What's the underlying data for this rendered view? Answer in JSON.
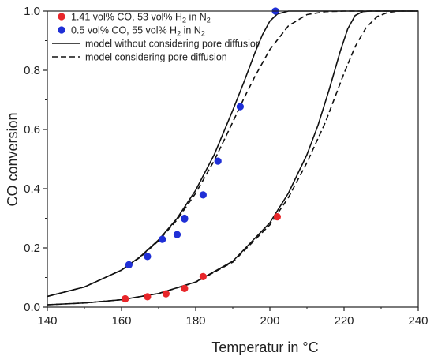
{
  "chart_data": {
    "type": "scatter",
    "xlabel": "Temperatur in °C",
    "ylabel": "CO conversion",
    "xlim": [
      140,
      240
    ],
    "ylim": [
      0.0,
      1.0
    ],
    "x_ticks": [
      "140",
      "160",
      "180",
      "200",
      "220",
      "240"
    ],
    "y_ticks": [
      "0.0",
      "0.2",
      "0.4",
      "0.6",
      "0.8",
      "1.0"
    ],
    "grid": false,
    "legend_position": "top-left",
    "legend": [
      {
        "marker": "dot",
        "color": "#e8262a",
        "parts": [
          "1.41 vol% CO, 53 vol% H",
          "2",
          " in N",
          "2"
        ]
      },
      {
        "marker": "dot",
        "color": "#1f2fd6",
        "parts": [
          "0.5 vol% CO, 55 vol% H",
          "2",
          " in N",
          "2"
        ]
      },
      {
        "marker": "solid-line",
        "color": "#111111",
        "parts": [
          "model without considering pore diffusion"
        ]
      },
      {
        "marker": "dashed-line",
        "color": "#111111",
        "parts": [
          "model considering pore diffusion"
        ]
      }
    ],
    "series": [
      {
        "kind": "points",
        "color": "#e8262a",
        "x": [
          161,
          167,
          172,
          177,
          182,
          202
        ],
        "y": [
          0.028,
          0.035,
          0.045,
          0.063,
          0.103,
          0.305
        ]
      },
      {
        "kind": "points",
        "color": "#1f2fd6",
        "x": [
          162,
          167,
          171,
          175,
          177,
          177,
          182,
          186,
          192,
          201.5
        ],
        "y": [
          0.143,
          0.171,
          0.229,
          0.245,
          0.298,
          0.3,
          0.379,
          0.493,
          0.677,
          1.0
        ]
      },
      {
        "kind": "line",
        "style": "solid",
        "color": "#111111",
        "x": [
          140,
          150,
          160,
          165,
          170,
          175,
          180,
          185,
          190,
          193,
          196,
          198,
          200,
          202,
          205,
          210,
          240
        ],
        "y": [
          0.036,
          0.068,
          0.125,
          0.17,
          0.227,
          0.3,
          0.395,
          0.515,
          0.665,
          0.76,
          0.86,
          0.92,
          0.966,
          0.99,
          1.0,
          1.0,
          1.0
        ]
      },
      {
        "kind": "line",
        "style": "dashed",
        "color": "#111111",
        "x": [
          140,
          150,
          160,
          165,
          170,
          175,
          180,
          185,
          190,
          193,
          196,
          200,
          205,
          210,
          215,
          220,
          240
        ],
        "y": [
          0.036,
          0.068,
          0.125,
          0.168,
          0.224,
          0.295,
          0.385,
          0.495,
          0.625,
          0.705,
          0.78,
          0.87,
          0.95,
          0.988,
          0.998,
          1.0,
          1.0
        ]
      },
      {
        "kind": "line",
        "style": "solid",
        "color": "#111111",
        "x": [
          140,
          150,
          160,
          170,
          180,
          190,
          200,
          205,
          210,
          213,
          216,
          219,
          221,
          223,
          225,
          227,
          240
        ],
        "y": [
          0.008,
          0.014,
          0.025,
          0.046,
          0.085,
          0.155,
          0.285,
          0.385,
          0.515,
          0.615,
          0.735,
          0.865,
          0.94,
          0.985,
          0.998,
          1.0,
          1.0
        ]
      },
      {
        "kind": "line",
        "style": "dashed",
        "color": "#111111",
        "x": [
          140,
          150,
          160,
          170,
          180,
          190,
          200,
          205,
          210,
          215,
          220,
          223,
          226,
          229,
          232,
          235,
          240
        ],
        "y": [
          0.008,
          0.014,
          0.025,
          0.046,
          0.084,
          0.152,
          0.278,
          0.37,
          0.488,
          0.625,
          0.79,
          0.88,
          0.945,
          0.982,
          0.996,
          1.0,
          1.0
        ]
      }
    ]
  }
}
